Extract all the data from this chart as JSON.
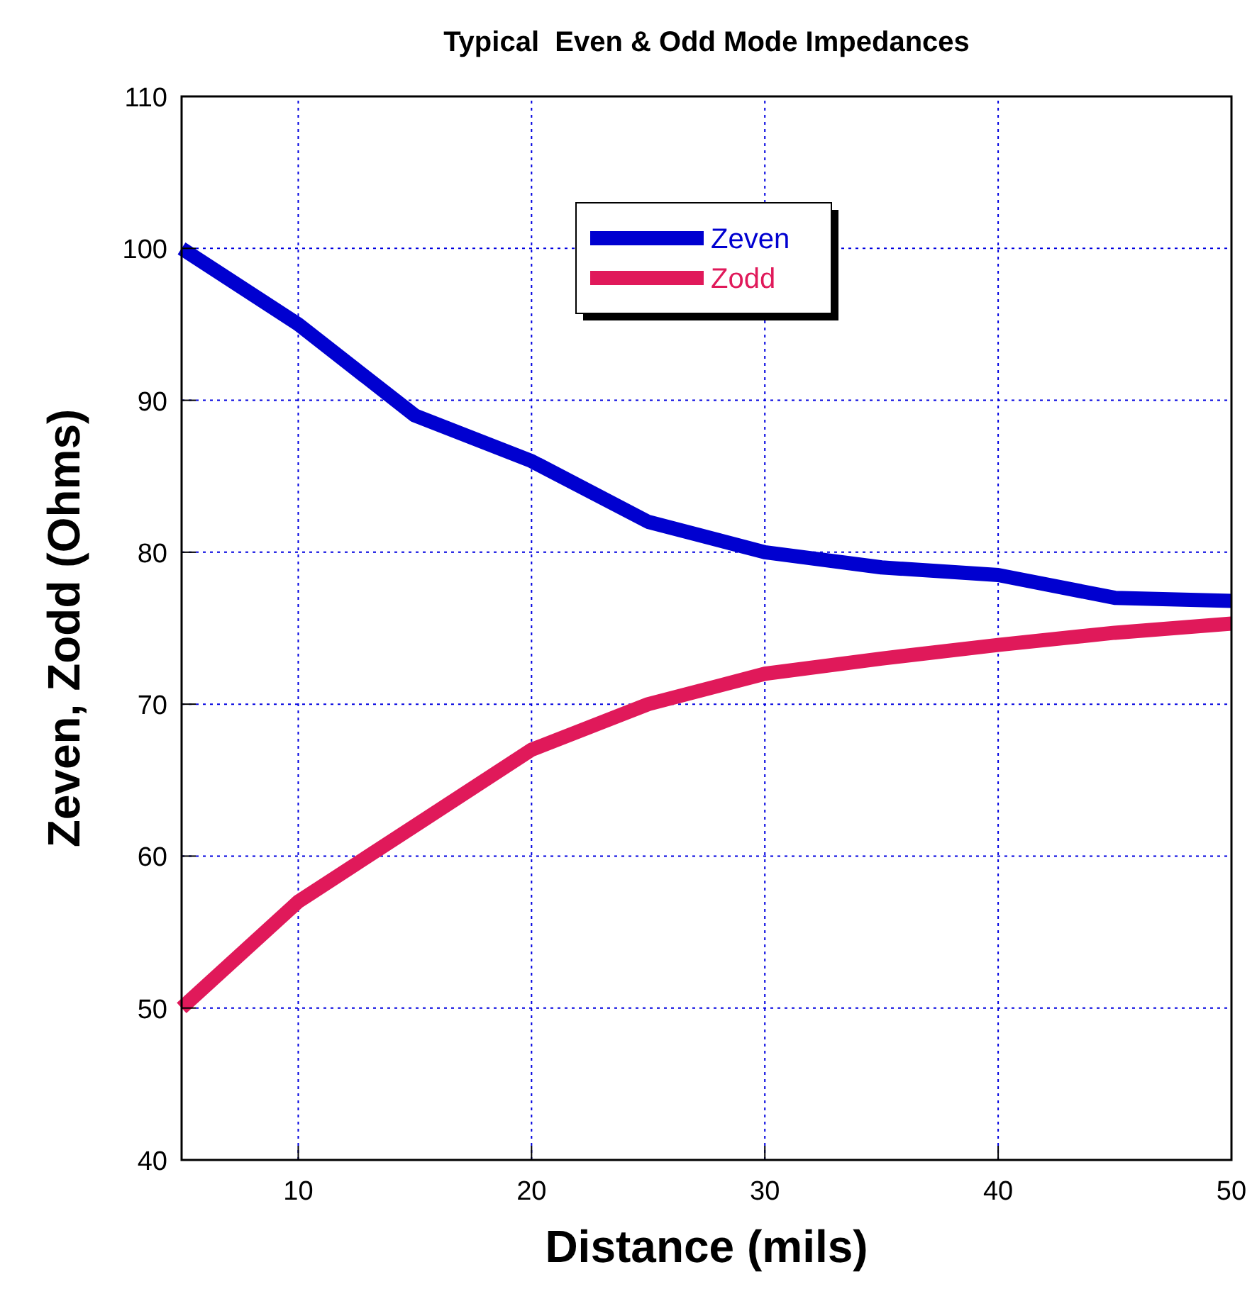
{
  "chart_data": {
    "type": "line",
    "title": "Typical  Even & Odd Mode Impedances",
    "xlabel": "Distance (mils)",
    "ylabel": "Zeven, Zodd (Ohms)",
    "x": [
      5,
      10,
      15,
      20,
      25,
      30,
      35,
      40,
      45,
      50
    ],
    "series": [
      {
        "name": "Zeven",
        "color": "#0000d0",
        "values": [
          100,
          95,
          89,
          86,
          82,
          80,
          79,
          78.5,
          77,
          76.8
        ]
      },
      {
        "name": "Zodd",
        "color": "#e0195a",
        "values": [
          50,
          57,
          62,
          67,
          70,
          72,
          73,
          73.9,
          74.7,
          75.3
        ]
      }
    ],
    "xlim": [
      5,
      50
    ],
    "xticks": [
      10,
      20,
      30,
      40,
      50
    ],
    "ylim": [
      40,
      110
    ],
    "yticks": [
      40,
      50,
      60,
      70,
      80,
      90,
      100,
      110
    ],
    "grid": true,
    "legend": "top",
    "marker": "none",
    "line_style": "solid"
  }
}
